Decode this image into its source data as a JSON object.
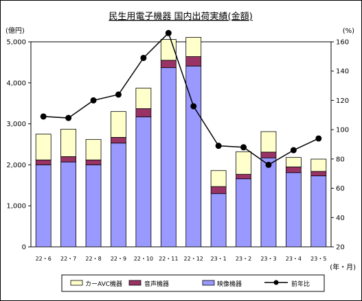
{
  "chart_data": {
    "type": "bar",
    "title": "民生用電子機器 国内出荷実績(金額)",
    "left_unit": "(億円)",
    "right_unit": "(%)",
    "x_unit": "(年・月)",
    "categories": [
      "22・6",
      "22・7",
      "22・8",
      "22・9",
      "22・10",
      "22・11",
      "22・12",
      "23・1",
      "23・2",
      "23・3",
      "23・4",
      "23・5"
    ],
    "stack_order": [
      "映像機器",
      "音声機器",
      "カーAVC機器"
    ],
    "series": [
      {
        "name": "カーAVC機器",
        "kind": "bar",
        "color": "#ffffcc",
        "values": [
          630,
          670,
          500,
          630,
          500,
          510,
          470,
          390,
          550,
          500,
          230,
          300
        ]
      },
      {
        "name": "音声機器",
        "kind": "bar",
        "color": "#993366",
        "values": [
          120,
          130,
          120,
          140,
          200,
          180,
          230,
          170,
          110,
          140,
          140,
          110
        ]
      },
      {
        "name": "映像機器",
        "kind": "bar",
        "color": "#9999ff",
        "values": [
          2000,
          2070,
          2000,
          2530,
          3170,
          4370,
          4410,
          1300,
          1660,
          2170,
          1810,
          1730
        ]
      },
      {
        "name": "前年比",
        "kind": "line",
        "axis": "right",
        "color": "#000000",
        "values": [
          109,
          108,
          120,
          124,
          149,
          166,
          116,
          89,
          88,
          76,
          86,
          94
        ]
      }
    ],
    "y_left": {
      "min": 0,
      "max": 5000,
      "ticks": [
        "0",
        "1,000",
        "2,000",
        "3,000",
        "4,000",
        "5,000"
      ]
    },
    "y_right": {
      "min": 20,
      "max": 160,
      "ticks": [
        "20",
        "40",
        "60",
        "80",
        "100",
        "120",
        "140",
        "160"
      ]
    },
    "legend_order": [
      "カーAVC機器",
      "音声機器",
      "映像機器",
      "前年比"
    ],
    "legend_position": "bottom",
    "grid": false
  }
}
